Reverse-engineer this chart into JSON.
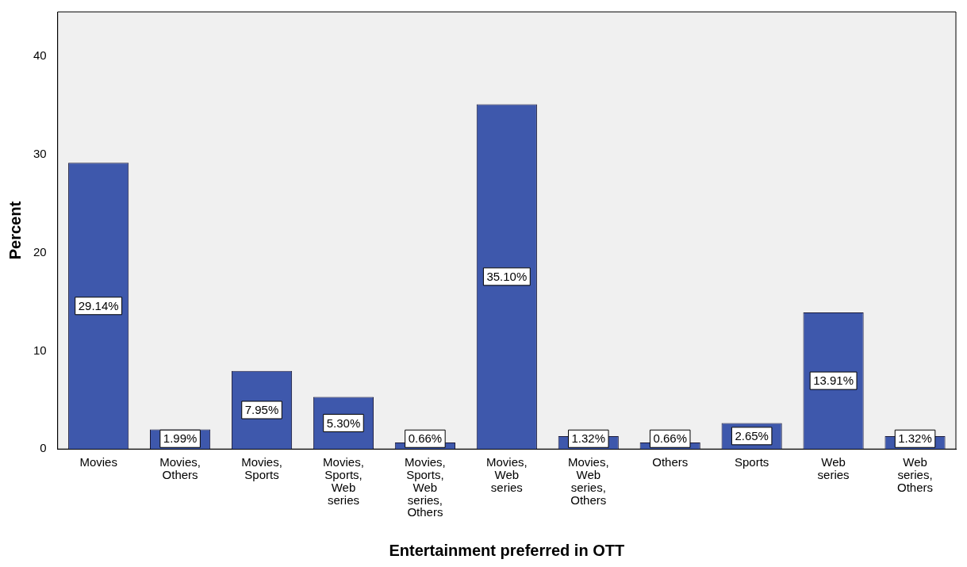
{
  "chart_data": {
    "type": "bar",
    "xlabel": "Entertainment preferred in OTT",
    "ylabel": "Percent",
    "categories": [
      "Movies",
      "Movies, Others",
      "Movies, Sports",
      "Movies, Sports, Web series",
      "Movies, Sports, Web series, Others",
      "Movies, Web series",
      "Movies, Web series, Others",
      "Others",
      "Sports",
      "Web series",
      "Web series, Others"
    ],
    "values": [
      29.14,
      1.99,
      7.95,
      5.3,
      0.66,
      35.1,
      1.32,
      0.66,
      2.65,
      13.91,
      1.32
    ],
    "value_labels": [
      "29.14%",
      "1.99%",
      "7.95%",
      "5.30%",
      "0.66%",
      "35.10%",
      "1.32%",
      "0.66%",
      "2.65%",
      "13.91%",
      "1.32%"
    ],
    "color": "#3e58ac",
    "ylim": [
      0,
      44.5
    ],
    "yticks": [
      0,
      10,
      20,
      30,
      40
    ],
    "grid": false,
    "legend": false
  }
}
